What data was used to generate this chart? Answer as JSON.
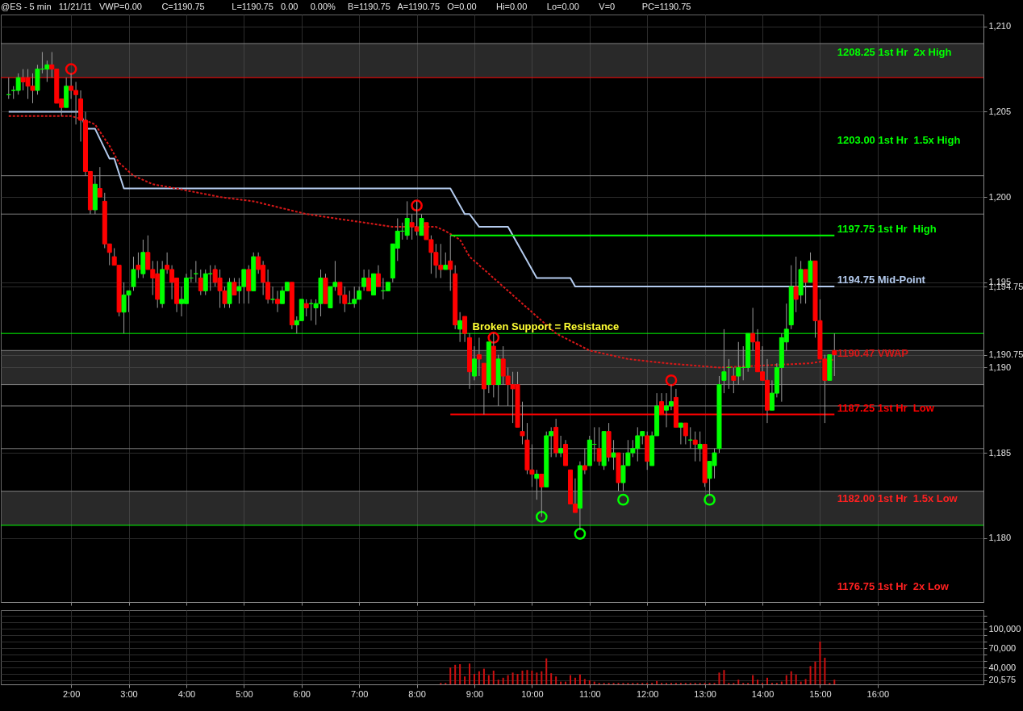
{
  "chart_data": [
    {
      "type": "candlestick",
      "title": "@ES - 5 min   11/21/11   VWP=0.00        C=1190.75           L=1190.75   0.00     0.00%     B=1190.75   A=1190.75   O=0.00        Hi=0.00        Lo=0.00        V=0           PC=1190.75",
      "x": [
        "--11-21T00:55",
        "--11-21T01:00",
        "--11-21T01:05",
        "--11-21T01:10",
        "--11-21T01:15",
        "--11-21T01:20",
        "--11-21T01:25",
        "--11-21T01:30",
        "--11-21T01:35",
        "--11-21T01:40",
        "--11-21T01:45",
        "--11-21T01:50",
        "--11-21T01:55",
        "--11-21T02:00",
        "--11-21T02:05",
        "--11-21T02:10",
        "--11-21T02:15",
        "--11-21T02:20",
        "--11-21T02:25",
        "--11-21T02:30",
        "--11-21T02:35",
        "--11-21T02:40",
        "--11-21T02:45",
        "--11-21T02:50",
        "--11-21T02:55",
        "--11-21T03:00",
        "--11-21T03:05",
        "--11-21T03:10",
        "--11-21T03:15",
        "--11-21T03:20",
        "--11-21T03:25",
        "--11-21T03:30",
        "--11-21T03:35",
        "--11-21T03:40",
        "--11-21T03:45",
        "--11-21T03:50",
        "--11-21T03:55",
        "--11-21T04:00",
        "--11-21T04:05",
        "--11-21T04:10",
        "--11-21T04:15",
        "--11-21T04:20",
        "--11-21T04:25",
        "--11-21T04:30",
        "--11-21T04:35",
        "--11-21T04:40",
        "--11-21T04:45",
        "--11-21T04:50",
        "--11-21T04:55",
        "--11-21T05:00",
        "--11-21T05:05",
        "--11-21T05:10",
        "--11-21T05:15",
        "--11-21T05:20",
        "--11-21T05:25",
        "--11-21T05:30",
        "--11-21T05:35",
        "--11-21T05:40",
        "--11-21T05:45",
        "--11-21T05:50",
        "--11-21T05:55",
        "--11-21T06:00",
        "--11-21T06:05",
        "--11-21T06:10",
        "--11-21T06:15",
        "--11-21T06:20",
        "--11-21T06:25",
        "--11-21T06:30",
        "--11-21T06:35",
        "--11-21T06:40",
        "--11-21T06:45",
        "--11-21T06:50",
        "--11-21T06:55",
        "--11-21T07:00",
        "--11-21T07:05",
        "--11-21T07:10",
        "--11-21T07:15",
        "--11-21T07:20",
        "--11-21T07:25",
        "--11-21T07:30",
        "--11-21T07:35",
        "--11-21T07:40",
        "--11-21T07:45",
        "--11-21T07:50",
        "--11-21T07:55",
        "--11-21T08:00",
        "--11-21T08:05",
        "--11-21T08:10",
        "--11-21T08:15",
        "--11-21T08:20",
        "--11-21T08:25",
        "--11-21T08:30",
        "--11-21T08:35",
        "--11-21T08:40",
        "--11-21T08:45",
        "--11-21T08:50",
        "--11-21T08:55",
        "--11-21T09:00",
        "--11-21T09:05",
        "--11-21T09:10",
        "--11-21T09:15",
        "--11-21T09:20",
        "--11-21T09:25",
        "--11-21T09:30",
        "--11-21T09:35",
        "--11-21T09:40",
        "--11-21T09:45",
        "--11-21T09:50",
        "--11-21T09:55",
        "--11-21T10:00",
        "--11-21T10:05",
        "--11-21T10:10",
        "--11-21T10:15",
        "--11-21T10:20",
        "--11-21T10:25",
        "--11-21T10:30",
        "--11-21T10:35",
        "--11-21T10:40",
        "--11-21T10:45",
        "--11-21T10:50",
        "--11-21T10:55",
        "--11-21T11:00",
        "--11-21T11:05",
        "--11-21T11:10",
        "--11-21T11:15",
        "--11-21T11:20",
        "--11-21T11:25",
        "--11-21T11:30",
        "--11-21T11:35",
        "--11-21T11:40",
        "--11-21T11:45",
        "--11-21T11:50",
        "--11-21T11:55",
        "--11-21T12:00",
        "--11-21T12:05",
        "--11-21T12:10",
        "--11-21T12:15",
        "--11-21T12:20",
        "--11-21T12:25",
        "--11-21T12:30",
        "--11-21T12:35",
        "--11-21T12:40",
        "--11-21T12:45",
        "--11-21T12:50",
        "--11-21T12:55",
        "--11-21T13:00",
        "--11-21T13:05",
        "--11-21T13:10",
        "--11-21T13:15",
        "--11-21T13:20",
        "--11-21T13:25",
        "--11-21T13:30",
        "--11-21T13:35",
        "--11-21T13:40",
        "--11-21T13:45",
        "--11-21T13:50",
        "--11-21T13:55",
        "--11-21T14:00",
        "--11-21T14:05",
        "--11-21T14:10",
        "--11-21T14:15",
        "--11-21T14:20",
        "--11-21T14:25",
        "--11-21T14:30",
        "--11-21T14:35",
        "--11-21T14:40",
        "--11-21T14:45",
        "--11-21T14:50",
        "--11-21T14:55",
        "--11-21T15:00",
        "--11-21T15:05",
        "--11-21T15:10",
        "--11-21T15:15"
      ],
      "ohlc": [
        [
          1206,
          1207,
          1205.75,
          1206
        ],
        [
          1206.25,
          1206.5,
          1205.75,
          1206.25
        ],
        [
          1206.25,
          1207.25,
          1206,
          1207
        ],
        [
          1207,
          1207.5,
          1206.25,
          1206.75
        ],
        [
          1207,
          1207.5,
          1205.75,
          1206.5
        ],
        [
          1206.5,
          1207.25,
          1205.5,
          1206.25
        ],
        [
          1206.25,
          1207.75,
          1206,
          1207.5
        ],
        [
          1207.5,
          1208.5,
          1207.25,
          1207.5
        ],
        [
          1207.5,
          1208,
          1206.75,
          1207.75
        ],
        [
          1207.75,
          1208.5,
          1207,
          1207.5
        ],
        [
          1207.5,
          1207.5,
          1205.5,
          1205.5
        ],
        [
          1205.75,
          1205.75,
          1204.75,
          1205.25
        ],
        [
          1205.25,
          1207,
          1205.25,
          1206.5
        ],
        [
          1206.5,
          1207.25,
          1205.75,
          1206.25
        ],
        [
          1206.25,
          1206.75,
          1204.25,
          1206
        ],
        [
          1205.75,
          1206.25,
          1203.25,
          1204.5
        ],
        [
          1204.5,
          1205,
          1201.25,
          1201.5
        ],
        [
          1201.5,
          1201.5,
          1199,
          1199.25
        ],
        [
          1199.25,
          1201.25,
          1199,
          1200.75
        ],
        [
          1200.5,
          1201.75,
          1200,
          1200
        ],
        [
          1199.75,
          1200.25,
          1197,
          1197.25
        ],
        [
          1197.25,
          1197.25,
          1196,
          1196.75
        ],
        [
          1196.5,
          1197,
          1196,
          1196
        ],
        [
          1196,
          1196,
          1193,
          1193.25
        ],
        [
          1193.25,
          1195,
          1192,
          1194.25
        ],
        [
          1194.25,
          1194.5,
          1193.25,
          1194.5
        ],
        [
          1194.75,
          1196.5,
          1194.5,
          1195.75
        ],
        [
          1196,
          1196.75,
          1195.25,
          1195.75
        ],
        [
          1195.5,
          1197.5,
          1195.25,
          1196.75
        ],
        [
          1196.75,
          1197.75,
          1195.75,
          1195.75
        ],
        [
          1195.75,
          1196.25,
          1194.25,
          1195.25
        ],
        [
          1195.5,
          1196.25,
          1193.5,
          1194
        ],
        [
          1193.75,
          1196.25,
          1193.5,
          1195.75
        ],
        [
          1196,
          1196.75,
          1195.5,
          1195.75
        ],
        [
          1195.75,
          1196,
          1194,
          1195
        ],
        [
          1195.25,
          1195.25,
          1193.25,
          1193.75
        ],
        [
          1193.75,
          1194.75,
          1193,
          1194
        ],
        [
          1193.75,
          1195.5,
          1193.75,
          1195.25
        ],
        [
          1195.25,
          1195.75,
          1195,
          1195.25
        ],
        [
          1195.5,
          1196.25,
          1195,
          1195.5
        ],
        [
          1195.25,
          1195.75,
          1194.25,
          1194.5
        ],
        [
          1194.5,
          1195.75,
          1194.25,
          1195.5
        ],
        [
          1195.5,
          1196,
          1194.5,
          1195.5
        ],
        [
          1195.75,
          1196,
          1194.75,
          1195
        ],
        [
          1195.25,
          1195.75,
          1193.5,
          1194.5
        ],
        [
          1194.5,
          1194.75,
          1193.5,
          1193.75
        ],
        [
          1193.75,
          1195.25,
          1193.5,
          1195
        ],
        [
          1195,
          1195.25,
          1194.25,
          1194.25
        ],
        [
          1194.5,
          1195.25,
          1193.75,
          1194.75
        ],
        [
          1194.75,
          1195.75,
          1193.75,
          1195.75
        ],
        [
          1195.75,
          1196,
          1193.75,
          1194.5
        ],
        [
          1194.5,
          1196.75,
          1194.5,
          1196.5
        ],
        [
          1196.5,
          1196.75,
          1195.5,
          1195.75
        ],
        [
          1196,
          1196.25,
          1194.25,
          1195
        ],
        [
          1195,
          1195.75,
          1193.75,
          1194
        ],
        [
          1194,
          1194.75,
          1193.75,
          1194
        ],
        [
          1194,
          1194.5,
          1193.25,
          1193.75
        ],
        [
          1193.75,
          1194.75,
          1193.75,
          1194.5
        ],
        [
          1194.5,
          1195,
          1194.5,
          1195
        ],
        [
          1195,
          1195,
          1192.25,
          1192.5
        ],
        [
          1192.5,
          1193,
          1192,
          1192.75
        ],
        [
          1192.75,
          1194,
          1192.75,
          1194
        ],
        [
          1193.75,
          1194,
          1193,
          1193.5
        ],
        [
          1193.75,
          1194,
          1192.75,
          1193.75
        ],
        [
          1193.5,
          1194,
          1192.5,
          1193.75
        ],
        [
          1193.75,
          1195.75,
          1193,
          1195.25
        ],
        [
          1195.25,
          1195.5,
          1193.75,
          1193.75
        ],
        [
          1193.5,
          1194.75,
          1193.5,
          1194.75
        ],
        [
          1194.75,
          1196.25,
          1194.5,
          1195
        ],
        [
          1195,
          1195,
          1193.75,
          1194.25
        ],
        [
          1194.25,
          1194.75,
          1193.25,
          1193.75
        ],
        [
          1193.75,
          1194.5,
          1193.75,
          1193.75
        ],
        [
          1193.75,
          1194.75,
          1193.5,
          1194
        ],
        [
          1194,
          1194.75,
          1194,
          1194.5
        ],
        [
          1194.75,
          1195.75,
          1194.5,
          1195.25
        ],
        [
          1195.25,
          1195.75,
          1194.5,
          1194.5
        ],
        [
          1194.25,
          1195.5,
          1194.25,
          1195.5
        ],
        [
          1195.5,
          1196,
          1194.75,
          1194.75
        ],
        [
          1194.5,
          1195.25,
          1194,
          1194.5
        ],
        [
          1194.5,
          1195,
          1194.5,
          1195
        ],
        [
          1195.25,
          1197.25,
          1195,
          1197.25
        ],
        [
          1197,
          1198.75,
          1196.25,
          1198
        ],
        [
          1198,
          1198.5,
          1197.5,
          1198
        ],
        [
          1197.75,
          1199.75,
          1197.5,
          1198.75
        ],
        [
          1198.5,
          1199,
          1197.5,
          1198.25
        ],
        [
          1198.25,
          1199.75,
          1197.75,
          1198
        ],
        [
          1197.75,
          1199,
          1197.75,
          1198.75
        ],
        [
          1198.5,
          1198.5,
          1197.5,
          1197.5
        ],
        [
          1197.5,
          1197.75,
          1195.5,
          1196.75
        ],
        [
          1196.75,
          1197.25,
          1195.25,
          1196
        ],
        [
          1196,
          1197.25,
          1195.25,
          1195.75
        ],
        [
          1195.75,
          1196.75,
          1195.75,
          1196
        ],
        [
          1196.25,
          1197.75,
          1194.5,
          1195.75
        ],
        [
          1195.5,
          1196,
          1192.25,
          1192.5
        ],
        [
          1192.25,
          1193.25,
          1191.5,
          1192.75
        ],
        [
          1193,
          1193,
          1191.5,
          1192
        ],
        [
          1191.75,
          1192,
          1188.75,
          1189.75
        ],
        [
          1189.5,
          1191.25,
          1189.25,
          1190.5
        ],
        [
          1190.75,
          1191.75,
          1189.5,
          1190.5
        ],
        [
          1190.25,
          1190.25,
          1187.25,
          1188.75
        ],
        [
          1189,
          1191.5,
          1188.5,
          1191.5
        ],
        [
          1191.25,
          1192,
          1188.25,
          1189
        ],
        [
          1189,
          1190.75,
          1187.75,
          1190.5
        ],
        [
          1190.5,
          1191.25,
          1189,
          1189.5
        ],
        [
          1189.5,
          1190,
          1187.75,
          1189
        ],
        [
          1189,
          1189.75,
          1186.75,
          1188.75
        ],
        [
          1189,
          1189.75,
          1186.5,
          1186.5
        ],
        [
          1186.25,
          1188,
          1185.5,
          1186
        ],
        [
          1185.75,
          1186.75,
          1183.75,
          1184
        ],
        [
          1184,
          1185.5,
          1183,
          1183.75
        ],
        [
          1183.5,
          1184,
          1182.25,
          1183.75
        ],
        [
          1183.75,
          1183.75,
          1181.25,
          1183
        ],
        [
          1183,
          1186.25,
          1183,
          1186
        ],
        [
          1186,
          1186.5,
          1184.75,
          1186.25
        ],
        [
          1186.5,
          1187,
          1184.75,
          1185
        ],
        [
          1185,
          1186,
          1184.75,
          1185.25
        ],
        [
          1185.5,
          1185.75,
          1184.25,
          1184.25
        ],
        [
          1184,
          1184,
          1182,
          1182
        ],
        [
          1182,
          1183.5,
          1181.5,
          1181.5
        ],
        [
          1181.75,
          1184.5,
          1180.5,
          1184.25
        ],
        [
          1184.25,
          1185.25,
          1183.75,
          1184
        ],
        [
          1184.25,
          1186,
          1184.25,
          1185.75
        ],
        [
          1185.5,
          1186.5,
          1184.5,
          1185.5
        ],
        [
          1185.25,
          1186.5,
          1184.25,
          1184.5
        ],
        [
          1184.25,
          1186.25,
          1184,
          1186.25
        ],
        [
          1186.25,
          1186.75,
          1184.5,
          1184.75
        ],
        [
          1184.75,
          1185.75,
          1184,
          1185
        ],
        [
          1185,
          1185,
          1182.75,
          1183.25
        ],
        [
          1183.25,
          1185,
          1182.75,
          1184.25
        ],
        [
          1184.25,
          1185.75,
          1184.25,
          1185
        ],
        [
          1185,
          1185.75,
          1184.75,
          1185.25
        ],
        [
          1185.25,
          1186.5,
          1184.5,
          1186
        ],
        [
          1186,
          1186.25,
          1185.5,
          1186.25
        ],
        [
          1186,
          1186.25,
          1184,
          1184.5
        ],
        [
          1184.25,
          1186.25,
          1184.25,
          1186
        ],
        [
          1186,
          1188.5,
          1186,
          1187.75
        ],
        [
          1188,
          1188.5,
          1187.25,
          1187.25
        ],
        [
          1187.5,
          1188.5,
          1186.5,
          1187.75
        ],
        [
          1187.75,
          1189,
          1187.5,
          1188
        ],
        [
          1188.25,
          1188.75,
          1186.5,
          1186.5
        ],
        [
          1186.5,
          1186.75,
          1185.5,
          1186.75
        ],
        [
          1186.75,
          1186.75,
          1185.5,
          1186
        ],
        [
          1185.75,
          1186.5,
          1185.25,
          1185.75
        ],
        [
          1185.75,
          1186.25,
          1184.5,
          1185.5
        ],
        [
          1185.25,
          1186.25,
          1184.5,
          1185.5
        ],
        [
          1185.5,
          1185.5,
          1183,
          1183.25
        ],
        [
          1183.5,
          1184.5,
          1182.5,
          1184.5
        ],
        [
          1184.25,
          1185.25,
          1183.5,
          1185
        ],
        [
          1185.25,
          1189.5,
          1185,
          1189
        ],
        [
          1189.25,
          1192.25,
          1188.5,
          1189.75
        ],
        [
          1190,
          1190.5,
          1188.75,
          1190
        ],
        [
          1189.5,
          1190,
          1188.5,
          1189.25
        ],
        [
          1189.5,
          1191.5,
          1189,
          1190
        ],
        [
          1190,
          1191.25,
          1189.25,
          1190
        ],
        [
          1190,
          1192,
          1189.75,
          1192
        ],
        [
          1192,
          1193.5,
          1191,
          1191.5
        ],
        [
          1191.5,
          1192.25,
          1189.75,
          1189.75
        ],
        [
          1189.75,
          1191.25,
          1189.25,
          1189.25
        ],
        [
          1189.25,
          1190.5,
          1186.75,
          1187.5
        ],
        [
          1187.5,
          1189.25,
          1187.5,
          1188.5
        ],
        [
          1188.5,
          1190.25,
          1188.25,
          1190
        ],
        [
          1190,
          1192,
          1188,
          1191.75
        ],
        [
          1191.5,
          1193.75,
          1191,
          1192.25
        ],
        [
          1192.5,
          1196,
          1192.25,
          1194.75
        ],
        [
          1194.75,
          1196.5,
          1193.25,
          1194
        ],
        [
          1194.25,
          1196.25,
          1193.75,
          1195.75
        ],
        [
          1195.75,
          1195.75,
          1193.75,
          1195
        ],
        [
          1195,
          1196.75,
          1195,
          1196.25
        ],
        [
          1196.25,
          1196.25,
          1191.75,
          1192.75
        ],
        [
          1192.75,
          1194,
          1190.5,
          1190.5
        ],
        [
          1190.5,
          1190.75,
          1186.75,
          1189.25
        ],
        [
          1189.25,
          1190.75,
          1189.25,
          1190.75
        ],
        [
          1191,
          1192,
          1189.5,
          1190.75
        ]
      ],
      "series": [
        {
          "type": "line",
          "color": "#b4cbee",
          "x": [
            "--11-21T00:55",
            "--11-21T02:10",
            "--11-21T02:15",
            "--11-21T02:25",
            "--11-21T02:40",
            "--11-21T02:45",
            "--11-21T02:55",
            "--11-21T08:35",
            "--11-21T08:50",
            "--11-21T08:55",
            "--11-21T09:05",
            "--11-21T09:35",
            "--11-21T10:05",
            "--11-21T10:40",
            "--11-21T10:45",
            "--11-21T15:15"
          ],
          "values": [
            1205,
            1205,
            1204,
            1204,
            1202.25,
            1202.25,
            1200.5,
            1200.5,
            1199,
            1199,
            1198.25,
            1198.25,
            1195.25,
            1195.25,
            1194.75,
            1194.75
          ]
        },
        {
          "type": "line",
          "color": "#d81818",
          "line_style": "dashed",
          "x": [
            "--11-21T00:55",
            "--11-21T02:00",
            "--11-21T02:15",
            "--11-21T02:25",
            "--11-21T02:40",
            "--11-21T02:50",
            "--11-21T03:05",
            "--11-21T03:25",
            "--11-21T03:50",
            "--11-21T04:35",
            "--11-21T05:10",
            "--11-21T06:05",
            "--11-21T07:05",
            "--11-21T07:35",
            "--11-21T08:20",
            "--11-21T08:30",
            "--11-21T08:45",
            "--11-21T08:55",
            "--11-21T10:00",
            "--11-21T10:25",
            "--11-21T11:00",
            "--11-21T11:40",
            "--11-21T12:20",
            "--11-21T13:15",
            "--11-21T14:50",
            "--11-21T15:15"
          ],
          "values": [
            1204.75,
            1204.75,
            1204.5,
            1204.25,
            1203,
            1202,
            1201.25,
            1200.75,
            1200.5,
            1200,
            1199.75,
            1199,
            1198.5,
            1198.25,
            1198.25,
            1198,
            1197.5,
            1196.5,
            1193.25,
            1192,
            1191,
            1190.5,
            1190.25,
            1190,
            1190.25,
            1190.47
          ]
        },
        {
          "type": "line",
          "color": "#00ff00",
          "x": [
            "--11-21T08:35",
            "--11-21T15:15"
          ],
          "values": [
            1197.75,
            1197.75
          ]
        },
        {
          "type": "line",
          "color": "#ff0000",
          "x": [
            "--11-21T08:35",
            "--11-21T15:15"
          ],
          "values": [
            1187.25,
            1187.25
          ]
        },
        {
          "type": "scatter",
          "color": "#ff0000",
          "marker": "circle",
          "x": [
            "--11-21T02:00",
            "--11-21T08:00",
            "--11-21T09:20",
            "--11-21T12:25"
          ],
          "values": [
            1207.5,
            1199.5,
            1191.75,
            1189.25
          ]
        },
        {
          "type": "scatter",
          "color": "#00ff00",
          "marker": "circle",
          "x": [
            "--11-21T10:10",
            "--11-21T10:50",
            "--11-21T11:35",
            "--11-21T13:05"
          ],
          "values": [
            1181.25,
            1180.25,
            1182.25,
            1182.25
          ]
        }
      ],
      "ref_lines": [
        {
          "axis": "y",
          "value": 1209,
          "color": "#808080"
        },
        {
          "axis": "y",
          "value": 1207,
          "color": "#ff0000"
        },
        {
          "axis": "y",
          "value": 1201.25,
          "color": "#808080"
        },
        {
          "axis": "y",
          "value": 1199,
          "color": "#808080"
        },
        {
          "axis": "y",
          "value": 1192,
          "color": "#00ff00"
        },
        {
          "axis": "y",
          "value": 1191,
          "color": "#808080"
        },
        {
          "axis": "y",
          "value": 1189,
          "color": "#808080"
        },
        {
          "axis": "y",
          "value": 1187.75,
          "color": "#808080"
        },
        {
          "axis": "y",
          "value": 1185.25,
          "color": "#808080"
        },
        {
          "axis": "y",
          "value": 1182.75,
          "color": "#808080"
        },
        {
          "axis": "y",
          "value": 1180.75,
          "color": "#00ff00"
        }
      ],
      "bands": [
        {
          "axis": "y",
          "from": 1207,
          "to": 1209,
          "color": "#5a5a5a"
        },
        {
          "axis": "y",
          "from": 1189,
          "to": 1191,
          "color": "#5a5a5a"
        },
        {
          "axis": "y",
          "from": 1180.75,
          "to": 1182.75,
          "color": "#5a5a5a"
        }
      ],
      "annotations": [
        {
          "text": "Broken Support = Resistance",
          "x": "--11-21T08:58",
          "y": 1192
        },
        "1208.25 1st Hr  2x High",
        "1203.00 1st Hr  1.5x High",
        {
          "text": "1197.75 1st Hr  High",
          "x": "--11-21T15:18",
          "y": 1197.75
        },
        {
          "text": "1194.75 Mid-Point",
          "x": "--11-21T15:18",
          "y": 1194.75
        },
        {
          "text": "1190.47 VWAP",
          "x": "--11-21T15:18",
          "y": 1190.47
        },
        {
          "text": "1187.25 1st Hr  Low",
          "x": "--11-21T15:18",
          "y": 1187.25
        },
        "1182.00 1st Hr  1.5x Low",
        "1176.75 1st Hr  2x Low"
      ],
      "xlim": [
        "--11-21T00:51",
        "--11-21T17:46"
      ],
      "xticks": [
        {
          "value": "--11-21T02:00",
          "label": null
        },
        {
          "value": "--11-21T03:00",
          "label": null
        },
        {
          "value": "--11-21T04:00",
          "label": null
        },
        {
          "value": "--11-21T05:00",
          "label": null
        },
        {
          "value": "--11-21T06:00",
          "label": null
        },
        {
          "value": "--11-21T07:00",
          "label": null
        },
        {
          "value": "--11-21T08:00",
          "label": null
        },
        {
          "value": "--11-21T09:00",
          "label": null
        },
        {
          "value": "--11-21T10:00",
          "label": null
        },
        {
          "value": "--11-21T11:00",
          "label": null
        },
        {
          "value": "--11-21T12:00",
          "label": null
        },
        {
          "value": "--11-21T13:00",
          "label": null
        },
        {
          "value": "--11-21T14:00",
          "label": null
        },
        {
          "value": "--11-21T15:00",
          "label": null
        },
        {
          "value": "--11-21T16:00",
          "label": null
        }
      ],
      "ylim": [
        1176.25,
        1210.7
      ],
      "yticks": [
        {
          "value": 1180,
          "label": "1,180"
        },
        {
          "value": 1185,
          "label": "1,185"
        },
        {
          "value": 1190,
          "label": "1,190"
        },
        {
          "value": 1190.75,
          "label": "1,190.75"
        },
        {
          "value": 1194.75,
          "label": "1,194.75"
        },
        {
          "value": 1195,
          "label": "1,195"
        },
        {
          "value": 1200,
          "label": "1,200"
        },
        {
          "value": 1205,
          "label": "1,205"
        },
        {
          "value": 1210,
          "label": "1,210"
        }
      ],
      "grid": true,
      "tick_labels": "y"
    },
    {
      "type": "bar",
      "color": "#cc1010",
      "x": [
        "--11-21T08:25",
        "--11-21T08:30",
        "--11-21T08:35",
        "--11-21T08:40",
        "--11-21T08:45",
        "--11-21T08:50",
        "--11-21T08:55",
        "--11-21T09:00",
        "--11-21T09:05",
        "--11-21T09:10",
        "--11-21T09:15",
        "--11-21T09:20",
        "--11-21T09:25",
        "--11-21T09:30",
        "--11-21T09:35",
        "--11-21T09:40",
        "--11-21T09:45",
        "--11-21T09:50",
        "--11-21T09:55",
        "--11-21T10:00",
        "--11-21T10:05",
        "--11-21T10:10",
        "--11-21T10:15",
        "--11-21T10:20",
        "--11-21T10:25",
        "--11-21T10:30",
        "--11-21T10:35",
        "--11-21T10:40",
        "--11-21T10:45",
        "--11-21T10:50",
        "--11-21T10:55",
        "--11-21T11:00",
        "--11-21T11:05",
        "--11-21T11:10",
        "--11-21T11:15",
        "--11-21T11:20",
        "--11-21T11:25",
        "--11-21T11:30",
        "--11-21T11:35",
        "--11-21T11:40",
        "--11-21T11:45",
        "--11-21T11:50",
        "--11-21T11:55",
        "--11-21T12:00",
        "--11-21T12:05",
        "--11-21T12:10",
        "--11-21T12:15",
        "--11-21T12:20",
        "--11-21T12:25",
        "--11-21T12:30",
        "--11-21T12:35",
        "--11-21T12:40",
        "--11-21T12:45",
        "--11-21T12:50",
        "--11-21T12:55",
        "--11-21T13:00",
        "--11-21T13:05",
        "--11-21T13:10",
        "--11-21T13:15",
        "--11-21T13:20",
        "--11-21T13:25",
        "--11-21T13:30",
        "--11-21T13:35",
        "--11-21T13:40",
        "--11-21T13:45",
        "--11-21T13:50",
        "--11-21T13:55",
        "--11-21T14:00",
        "--11-21T14:05",
        "--11-21T14:10",
        "--11-21T14:15",
        "--11-21T14:20",
        "--11-21T14:25",
        "--11-21T14:30",
        "--11-21T14:35",
        "--11-21T14:40",
        "--11-21T14:45",
        "--11-21T14:50",
        "--11-21T14:55",
        "--11-21T15:00",
        "--11-21T15:05",
        "--11-21T15:10",
        "--11-21T15:15"
      ],
      "values": [
        16000,
        16000,
        40000,
        44000,
        45000,
        26000,
        46000,
        30000,
        34000,
        38000,
        28000,
        35000,
        21000,
        24000,
        28000,
        32000,
        30000,
        35000,
        36000,
        35000,
        32000,
        34000,
        54000,
        31000,
        26000,
        18000,
        18000,
        28000,
        24000,
        29000,
        22000,
        20000,
        18000,
        16000,
        16000,
        16000,
        16000,
        16000,
        16000,
        16000,
        16000,
        16000,
        16000,
        16000,
        16000,
        19000,
        16000,
        16000,
        16000,
        16000,
        16000,
        16000,
        16000,
        16000,
        16000,
        16000,
        16000,
        16000,
        32000,
        36000,
        16000,
        16000,
        21000,
        16000,
        16000,
        28000,
        21000,
        16000,
        24000,
        16000,
        16000,
        18000,
        28000,
        34000,
        29000,
        18000,
        22000,
        42000,
        49000,
        80000,
        55000,
        16000,
        21000
      ],
      "xlim": [
        "--11-21T00:51",
        "--11-21T17:46"
      ],
      "xticks": [
        {
          "value": "--11-21T02:00",
          "label": "2:00"
        },
        {
          "value": "--11-21T03:00",
          "label": "3:00"
        },
        {
          "value": "--11-21T04:00",
          "label": "4:00"
        },
        {
          "value": "--11-21T05:00",
          "label": "5:00"
        },
        {
          "value": "--11-21T06:00",
          "label": "6:00"
        },
        {
          "value": "--11-21T07:00",
          "label": "7:00"
        },
        {
          "value": "--11-21T08:00",
          "label": "8:00"
        },
        {
          "value": "--11-21T09:00",
          "label": "9:00"
        },
        {
          "value": "--11-21T10:00",
          "label": "10:00"
        },
        {
          "value": "--11-21T11:00",
          "label": "11:00"
        },
        {
          "value": "--11-21T12:00",
          "label": "12:00"
        },
        {
          "value": "--11-21T13:00",
          "label": "13:00"
        },
        {
          "value": "--11-21T14:00",
          "label": "14:00"
        },
        {
          "value": "--11-21T15:00",
          "label": "15:00"
        },
        {
          "value": "--11-21T16:00",
          "label": "16:00"
        }
      ],
      "ylim": [
        13750,
        128750
      ],
      "yticks": [
        {
          "value": 20575,
          "label": "20,575"
        },
        {
          "value": 30000,
          "label": null
        },
        {
          "value": 40000,
          "label": "40,000"
        },
        {
          "value": 50000,
          "label": null
        },
        {
          "value": 60000,
          "label": null
        },
        {
          "value": 70000,
          "label": "70,000"
        },
        {
          "value": 80000,
          "label": null
        },
        {
          "value": 90000,
          "label": null
        },
        {
          "value": 100000,
          "label": "100,000"
        },
        {
          "value": 110000,
          "label": null
        },
        {
          "value": 120000,
          "label": null
        }
      ],
      "grid": true
    }
  ]
}
